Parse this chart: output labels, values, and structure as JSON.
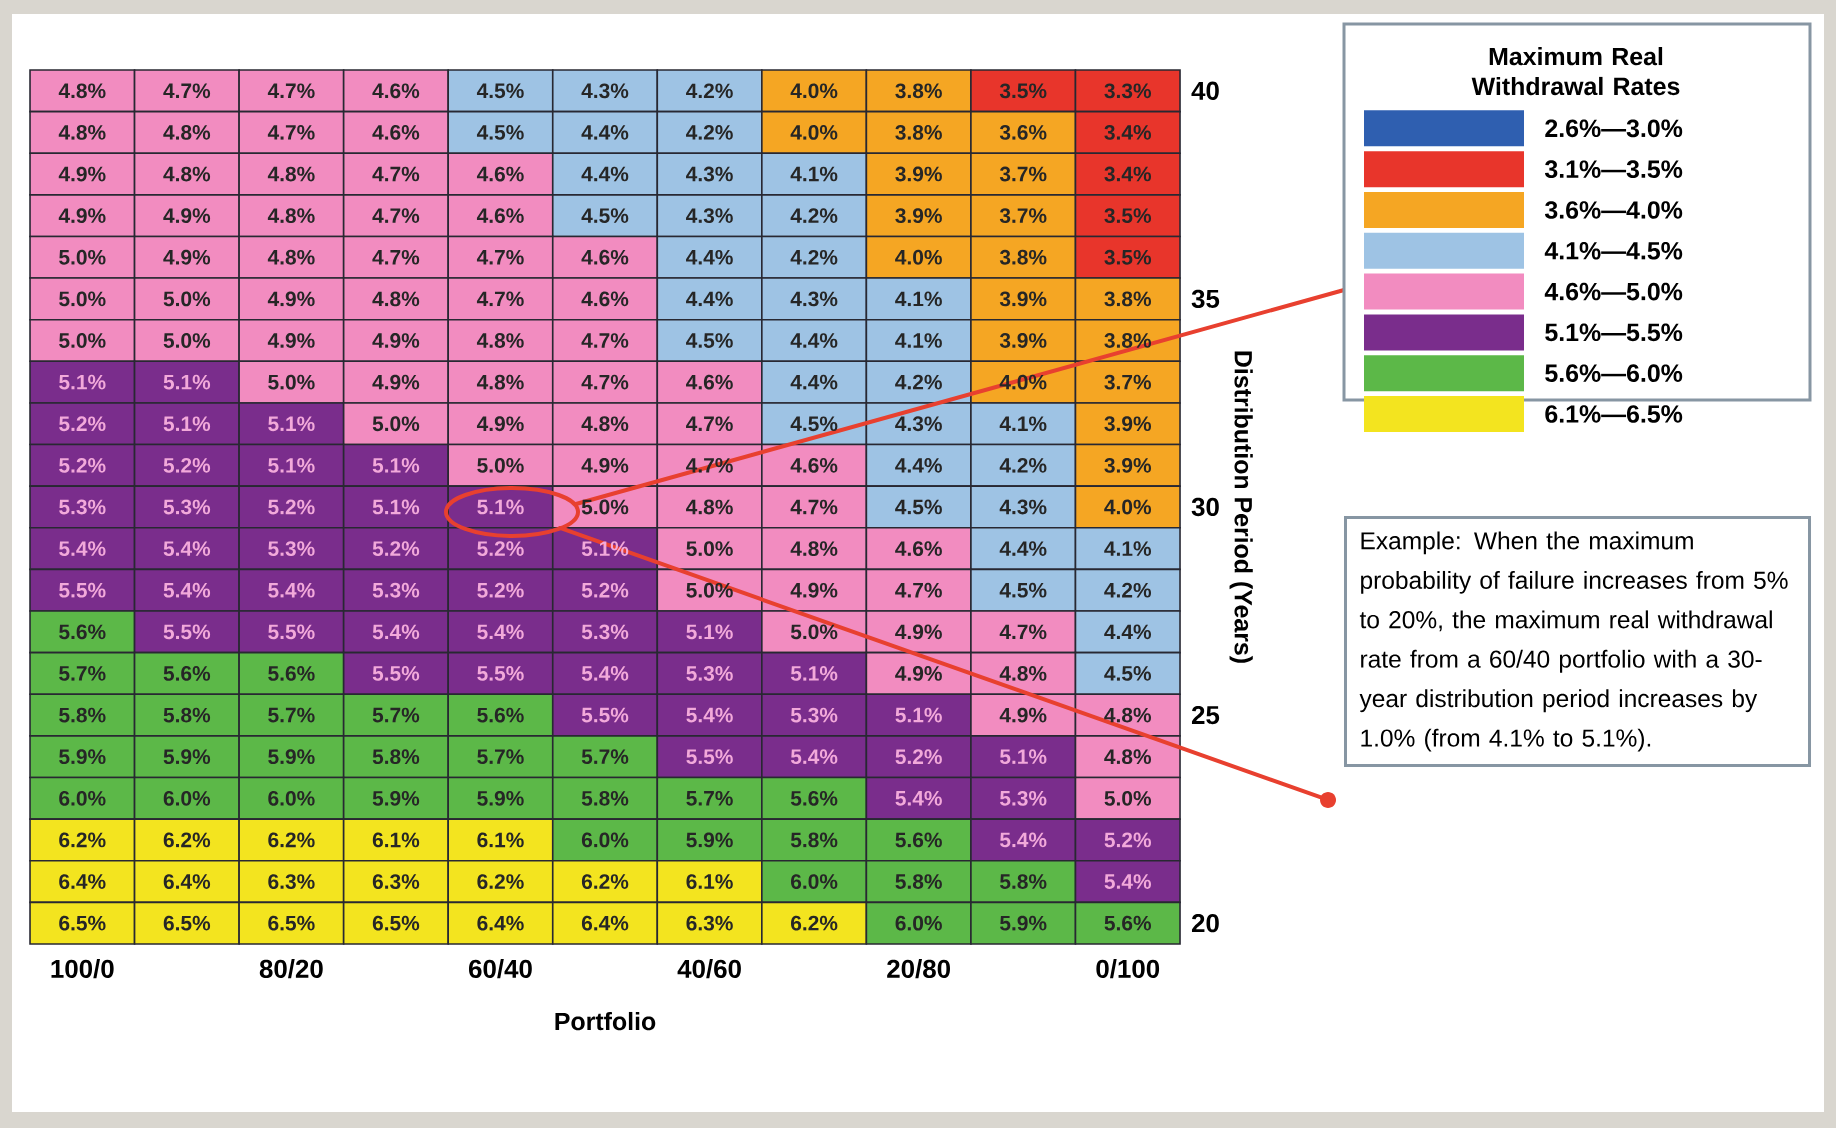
{
  "chart_data": {
    "type": "heatmap",
    "xlabel": "Portfolio",
    "ylabel": "Distribution Period (Years)",
    "clabel": "Maximum Real Withdrawal Rates",
    "categories": [
      "100/0",
      null,
      "80/20",
      null,
      "60/40",
      null,
      "40/60",
      null,
      "20/80",
      null,
      "0/100"
    ],
    "y_categories": [
      "40",
      null,
      null,
      null,
      null,
      "35",
      null,
      null,
      null,
      null,
      "30",
      null,
      null,
      null,
      null,
      "25",
      null,
      null,
      null,
      null,
      "20"
    ],
    "clim": [
      2.55,
      6.55
    ],
    "cticks": [
      {
        "value": 2.8,
        "label": "2.6%—3.0%"
      },
      {
        "value": 3.3,
        "label": "3.1%—3.5%"
      },
      {
        "value": 3.8,
        "label": "3.6%—4.0%"
      },
      {
        "value": 4.3,
        "label": "4.1%—4.5%"
      },
      {
        "value": 4.8,
        "label": "4.6%—5.0%"
      },
      {
        "value": 5.3,
        "label": "5.1%—5.5%"
      },
      {
        "value": 5.8,
        "label": "5.6%—6.0%"
      },
      {
        "value": 6.3,
        "label": "6.1%—6.5%"
      }
    ],
    "colors": [
      "#2f5fb0",
      "#e8352b",
      "#f5a623",
      "#9ec3e4",
      "#f28cc0",
      "#7a2d8c",
      "#5cb848",
      "#f3e41f"
    ],
    "cells": [
      [
        4.8,
        4.7,
        4.7,
        4.6,
        4.5,
        4.3,
        4.2,
        4.0,
        3.8,
        3.5,
        3.3
      ],
      [
        4.8,
        4.8,
        4.7,
        4.6,
        4.5,
        4.4,
        4.2,
        4.0,
        3.8,
        3.6,
        3.4
      ],
      [
        4.9,
        4.8,
        4.8,
        4.7,
        4.6,
        4.4,
        4.3,
        4.1,
        3.9,
        3.7,
        3.4
      ],
      [
        4.9,
        4.9,
        4.8,
        4.7,
        4.6,
        4.5,
        4.3,
        4.2,
        3.9,
        3.7,
        3.5
      ],
      [
        5.0,
        4.9,
        4.8,
        4.7,
        4.7,
        4.6,
        4.4,
        4.2,
        4.0,
        3.8,
        3.5
      ],
      [
        5.0,
        5.0,
        4.9,
        4.8,
        4.7,
        4.6,
        4.4,
        4.3,
        4.1,
        3.9,
        3.8
      ],
      [
        5.0,
        5.0,
        4.9,
        4.9,
        4.8,
        4.7,
        4.5,
        4.4,
        4.1,
        3.9,
        3.8
      ],
      [
        5.1,
        5.1,
        5.0,
        4.9,
        4.8,
        4.7,
        4.6,
        4.4,
        4.2,
        4.0,
        3.7
      ],
      [
        5.2,
        5.1,
        5.1,
        5.0,
        4.9,
        4.8,
        4.7,
        4.5,
        4.3,
        4.1,
        3.9
      ],
      [
        5.2,
        5.2,
        5.1,
        5.1,
        5.0,
        4.9,
        4.7,
        4.6,
        4.4,
        4.2,
        3.9
      ],
      [
        5.3,
        5.3,
        5.2,
        5.1,
        5.1,
        5.0,
        4.8,
        4.7,
        4.5,
        4.3,
        4.0
      ],
      [
        5.4,
        5.4,
        5.3,
        5.2,
        5.2,
        5.1,
        5.0,
        4.8,
        4.6,
        4.4,
        4.1
      ],
      [
        5.5,
        5.4,
        5.4,
        5.3,
        5.2,
        5.2,
        5.0,
        4.9,
        4.7,
        4.5,
        4.2
      ],
      [
        5.6,
        5.5,
        5.5,
        5.4,
        5.4,
        5.3,
        5.1,
        5.0,
        4.9,
        4.7,
        4.4
      ],
      [
        5.7,
        5.6,
        5.6,
        5.5,
        5.5,
        5.4,
        5.3,
        5.1,
        4.9,
        4.8,
        4.5
      ],
      [
        5.8,
        5.8,
        5.7,
        5.7,
        5.6,
        5.5,
        5.4,
        5.3,
        5.1,
        4.9,
        4.8
      ],
      [
        5.9,
        5.9,
        5.9,
        5.8,
        5.7,
        5.7,
        5.5,
        5.4,
        5.2,
        5.1,
        4.8
      ],
      [
        6.0,
        6.0,
        6.0,
        5.9,
        5.9,
        5.8,
        5.7,
        5.6,
        5.4,
        5.3,
        5.0
      ],
      [
        6.2,
        6.2,
        6.2,
        6.1,
        6.1,
        6.0,
        5.9,
        5.8,
        5.6,
        5.4,
        5.2
      ],
      [
        6.4,
        6.4,
        6.3,
        6.3,
        6.2,
        6.2,
        6.1,
        6.0,
        5.8,
        5.8,
        5.4
      ],
      [
        6.5,
        6.5,
        6.5,
        6.5,
        6.4,
        6.4,
        6.3,
        6.2,
        6.0,
        5.9,
        5.6
      ]
    ],
    "cell_labels": [
      [
        "4.8%",
        "4.7%",
        "4.7%",
        "4.6%",
        "4.5%",
        "4.3%",
        "4.2%",
        "4.0%",
        "3.8%",
        "3.5%",
        "3.3%"
      ],
      [
        "4.8%",
        "4.8%",
        "4.7%",
        "4.6%",
        "4.5%",
        "4.4%",
        "4.2%",
        "4.0%",
        "3.8%",
        "3.6%",
        "3.4%"
      ],
      [
        "4.9%",
        "4.8%",
        "4.8%",
        "4.7%",
        "4.6%",
        "4.4%",
        "4.3%",
        "4.1%",
        "3.9%",
        "3.7%",
        "3.4%"
      ],
      [
        "4.9%",
        "4.9%",
        "4.8%",
        "4.7%",
        "4.6%",
        "4.5%",
        "4.3%",
        "4.2%",
        "3.9%",
        "3.7%",
        "3.5%"
      ],
      [
        "5.0%",
        "4.9%",
        "4.8%",
        "4.7%",
        "4.7%",
        "4.6%",
        "4.4%",
        "4.2%",
        "4.0%",
        "3.8%",
        "3.5%"
      ],
      [
        "5.0%",
        "5.0%",
        "4.9%",
        "4.8%",
        "4.7%",
        "4.6%",
        "4.4%",
        "4.3%",
        "4.1%",
        "3.9%",
        "3.8%"
      ],
      [
        "5.0%",
        "5.0%",
        "4.9%",
        "4.9%",
        "4.8%",
        "4.7%",
        "4.5%",
        "4.4%",
        "4.1%",
        "3.9%",
        "3.8%"
      ],
      [
        "5.1%",
        "5.1%",
        "5.0%",
        "4.9%",
        "4.8%",
        "4.7%",
        "4.6%",
        "4.4%",
        "4.2%",
        "4.0%",
        "3.7%"
      ],
      [
        "5.2%",
        "5.1%",
        "5.1%",
        "5.0%",
        "4.9%",
        "4.8%",
        "4.7%",
        "4.5%",
        "4.3%",
        "4.1%",
        "3.9%"
      ],
      [
        "5.2%",
        "5.2%",
        "5.1%",
        "5.1%",
        "5.0%",
        "4.9%",
        "4.7%",
        "4.6%",
        "4.4%",
        "4.2%",
        "3.9%"
      ],
      [
        "5.3%",
        "5.3%",
        "5.2%",
        "5.1%",
        "5.1%",
        "5.0%",
        "4.8%",
        "4.7%",
        "4.5%",
        "4.3%",
        "4.0%"
      ],
      [
        "5.4%",
        "5.4%",
        "5.3%",
        "5.2%",
        "5.2%",
        "5.1%",
        "5.0%",
        "4.8%",
        "4.6%",
        "4.4%",
        "4.1%"
      ],
      [
        "5.5%",
        "5.4%",
        "5.4%",
        "5.3%",
        "5.2%",
        "5.2%",
        "5.0%",
        "4.9%",
        "4.7%",
        "4.5%",
        "4.2%"
      ],
      [
        "5.6%",
        "5.5%",
        "5.5%",
        "5.4%",
        "5.4%",
        "5.3%",
        "5.1%",
        "5.0%",
        "4.9%",
        "4.7%",
        "4.4%"
      ],
      [
        "5.7%",
        "5.6%",
        "5.6%",
        "5.5%",
        "5.5%",
        "5.4%",
        "5.3%",
        "5.1%",
        "4.9%",
        "4.8%",
        "4.5%"
      ],
      [
        "5.8%",
        "5.8%",
        "5.7%",
        "5.7%",
        "5.6%",
        "5.5%",
        "5.4%",
        "5.3%",
        "5.1%",
        "4.9%",
        "4.8%"
      ],
      [
        "5.9%",
        "5.9%",
        "5.9%",
        "5.8%",
        "5.7%",
        "5.7%",
        "5.5%",
        "5.4%",
        "5.2%",
        "5.1%",
        "4.8%"
      ],
      [
        "6.0%",
        "6.0%",
        "6.0%",
        "5.9%",
        "5.9%",
        "5.8%",
        "5.7%",
        "5.6%",
        "5.4%",
        "5.3%",
        "5.0%"
      ],
      [
        "6.2%",
        "6.2%",
        "6.2%",
        "6.1%",
        "6.1%",
        "6.0%",
        "5.9%",
        "5.8%",
        "5.6%",
        "5.4%",
        "5.2%"
      ],
      [
        "6.4%",
        "6.4%",
        "6.3%",
        "6.3%",
        "6.2%",
        "6.2%",
        "6.1%",
        "6.0%",
        "5.8%",
        "5.8%",
        "5.4%"
      ],
      [
        "6.5%",
        "6.5%",
        "6.5%",
        "6.5%",
        "6.4%",
        "6.4%",
        "6.3%",
        "6.2%",
        "6.0%",
        "5.9%",
        "5.6%"
      ]
    ],
    "annotations": [
      "Example: When the maximum probability of failure increases from 5% to 20%, the maximum real withdrawal rate from a 60/40 portfolio with a 30-year distribution period increases by 1.0% (from 4.1% to 5.1%)."
    ]
  }
}
